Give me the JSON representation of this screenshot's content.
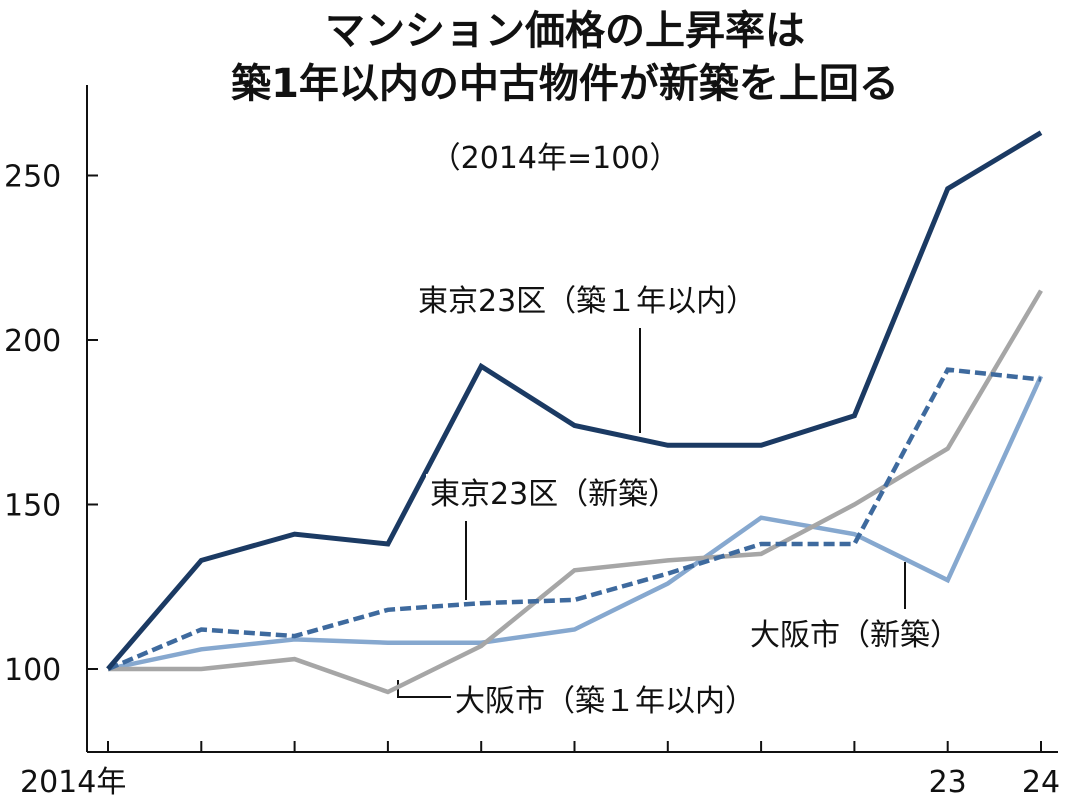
{
  "chart_data": {
    "type": "line",
    "title_line1": "マンション価格の上昇率は",
    "title_line2": "築1年以内の中古物件が新築を上回る",
    "subtitle": "（2014年=100）",
    "x": [
      "2014",
      "15",
      "16",
      "17",
      "18",
      "19",
      "20",
      "21",
      "22",
      "23",
      "24"
    ],
    "x_tick_labels": [
      "2014年",
      "",
      "",
      "",
      "",
      "",
      "",
      "",
      "",
      "23",
      "24"
    ],
    "ylim": [
      75,
      280
    ],
    "y_ticks": [
      100,
      150,
      200,
      250
    ],
    "y_tick_labels": [
      "100",
      "150",
      "200",
      "250"
    ],
    "grid": false,
    "legend": "none",
    "series": [
      {
        "name": "東京23区（築１年以内）",
        "color": "#1b3a63",
        "style": "solid",
        "values": [
          100,
          133,
          141,
          138,
          192,
          174,
          168,
          168,
          177,
          246,
          263
        ]
      },
      {
        "name": "東京23区（新築）",
        "color": "#3e6a9e",
        "style": "dashed",
        "values": [
          100,
          112,
          110,
          118,
          120,
          121,
          129,
          138,
          138,
          191,
          188
        ]
      },
      {
        "name": "大阪市（築１年以内）",
        "color": "#a6a6a6",
        "style": "solid",
        "values": [
          100,
          100,
          103,
          93,
          107,
          130,
          133,
          135,
          150,
          167,
          215
        ]
      },
      {
        "name": "大阪市（新築）",
        "color": "#86a8cf",
        "style": "solid",
        "values": [
          100,
          106,
          109,
          108,
          108,
          112,
          126,
          146,
          141,
          127,
          189
        ]
      }
    ]
  }
}
